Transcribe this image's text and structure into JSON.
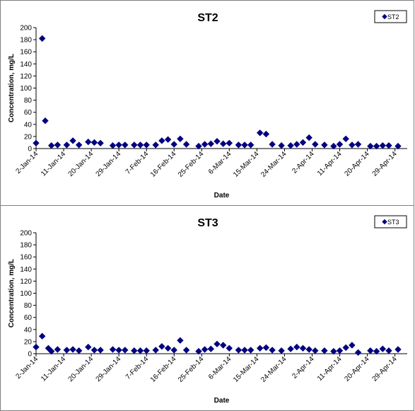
{
  "chart_data": [
    {
      "type": "scatter",
      "title": "ST2",
      "xlabel": "Date",
      "ylabel": "Concentration, mg/L",
      "ylim": [
        0,
        200
      ],
      "yticks": [
        "0",
        "20",
        "40",
        "60",
        "80",
        "100",
        "120",
        "140",
        "160",
        "180",
        "200"
      ],
      "xlim": [
        "2014-01-02",
        "2014-05-03"
      ],
      "xticks": [
        "2-Jan-14",
        "11-Jan-14",
        "20-Jan-14",
        "29-Jan-14",
        "7-Feb-14",
        "16-Feb-14",
        "25-Feb-14",
        "6-Mar-14",
        "15-Mar-14",
        "24-Mar-14",
        "2-Apr-14",
        "11-Apr-14",
        "20-Apr-14",
        "29-Apr-14"
      ],
      "grid": false,
      "legend": "top-right",
      "marker_color": "#000080",
      "series": [
        {
          "name": "ST2",
          "points": [
            [
              "2014-01-02",
              9
            ],
            [
              "2014-01-04",
              182
            ],
            [
              "2014-01-05",
              46
            ],
            [
              "2014-01-07",
              5
            ],
            [
              "2014-01-09",
              6
            ],
            [
              "2014-01-12",
              6
            ],
            [
              "2014-01-14",
              13
            ],
            [
              "2014-01-16",
              6
            ],
            [
              "2014-01-19",
              11
            ],
            [
              "2014-01-21",
              10
            ],
            [
              "2014-01-23",
              9
            ],
            [
              "2014-01-27",
              5
            ],
            [
              "2014-01-29",
              6
            ],
            [
              "2014-01-31",
              6
            ],
            [
              "2014-02-03",
              6
            ],
            [
              "2014-02-05",
              6
            ],
            [
              "2014-02-07",
              6
            ],
            [
              "2014-02-10",
              6
            ],
            [
              "2014-02-12",
              13
            ],
            [
              "2014-02-14",
              15
            ],
            [
              "2014-02-16",
              7
            ],
            [
              "2014-02-18",
              16
            ],
            [
              "2014-02-20",
              7
            ],
            [
              "2014-02-24",
              4
            ],
            [
              "2014-02-26",
              7
            ],
            [
              "2014-02-28",
              8
            ],
            [
              "2014-03-02",
              12
            ],
            [
              "2014-03-04",
              8
            ],
            [
              "2014-03-06",
              9
            ],
            [
              "2014-03-09",
              6
            ],
            [
              "2014-03-11",
              6
            ],
            [
              "2014-03-13",
              6
            ],
            [
              "2014-03-16",
              26
            ],
            [
              "2014-03-18",
              24
            ],
            [
              "2014-03-20",
              7
            ],
            [
              "2014-03-23",
              5
            ],
            [
              "2014-03-26",
              5
            ],
            [
              "2014-03-28",
              7
            ],
            [
              "2014-03-30",
              10
            ],
            [
              "2014-04-01",
              18
            ],
            [
              "2014-04-03",
              7
            ],
            [
              "2014-04-06",
              6
            ],
            [
              "2014-04-09",
              4
            ],
            [
              "2014-04-11",
              7
            ],
            [
              "2014-04-13",
              16
            ],
            [
              "2014-04-15",
              6
            ],
            [
              "2014-04-17",
              7
            ],
            [
              "2014-04-21",
              4
            ],
            [
              "2014-04-23",
              4
            ],
            [
              "2014-04-25",
              5
            ],
            [
              "2014-04-27",
              5
            ],
            [
              "2014-04-30",
              4
            ]
          ]
        }
      ]
    },
    {
      "type": "scatter",
      "title": "ST3",
      "xlabel": "Date",
      "ylabel": "Concentration, mg/L",
      "ylim": [
        0,
        200
      ],
      "yticks": [
        "0",
        "20",
        "40",
        "60",
        "80",
        "100",
        "120",
        "140",
        "160",
        "180",
        "200"
      ],
      "xlim": [
        "2014-01-02",
        "2014-05-03"
      ],
      "xticks": [
        "2-Jan-14",
        "11-Jan-14",
        "20-Jan-14",
        "29-Jan-14",
        "7-Feb-14",
        "16-Feb-14",
        "25-Feb-14",
        "6-Mar-14",
        "15-Mar-14",
        "24-Mar-14",
        "2-Apr-14",
        "11-Apr-14",
        "20-Apr-14",
        "29-Apr-14"
      ],
      "grid": false,
      "legend": "top-right",
      "marker_color": "#000080",
      "series": [
        {
          "name": "ST3",
          "points": [
            [
              "2014-01-02",
              11
            ],
            [
              "2014-01-04",
              29
            ],
            [
              "2014-01-06",
              9
            ],
            [
              "2014-01-07",
              4
            ],
            [
              "2014-01-09",
              7
            ],
            [
              "2014-01-12",
              6
            ],
            [
              "2014-01-14",
              7
            ],
            [
              "2014-01-16",
              5
            ],
            [
              "2014-01-19",
              11
            ],
            [
              "2014-01-21",
              6
            ],
            [
              "2014-01-23",
              6
            ],
            [
              "2014-01-27",
              7
            ],
            [
              "2014-01-29",
              6
            ],
            [
              "2014-01-31",
              6
            ],
            [
              "2014-02-03",
              5
            ],
            [
              "2014-02-05",
              5
            ],
            [
              "2014-02-07",
              5
            ],
            [
              "2014-02-10",
              6
            ],
            [
              "2014-02-12",
              12
            ],
            [
              "2014-02-14",
              9
            ],
            [
              "2014-02-16",
              6
            ],
            [
              "2014-02-18",
              22
            ],
            [
              "2014-02-20",
              6
            ],
            [
              "2014-02-24",
              4
            ],
            [
              "2014-02-26",
              7
            ],
            [
              "2014-02-28",
              8
            ],
            [
              "2014-03-02",
              16
            ],
            [
              "2014-03-04",
              14
            ],
            [
              "2014-03-06",
              9
            ],
            [
              "2014-03-09",
              6
            ],
            [
              "2014-03-11",
              6
            ],
            [
              "2014-03-13",
              6
            ],
            [
              "2014-03-16",
              9
            ],
            [
              "2014-03-18",
              10
            ],
            [
              "2014-03-20",
              6
            ],
            [
              "2014-03-23",
              5
            ],
            [
              "2014-03-26",
              8
            ],
            [
              "2014-03-28",
              11
            ],
            [
              "2014-03-30",
              9
            ],
            [
              "2014-04-01",
              7
            ],
            [
              "2014-04-03",
              5
            ],
            [
              "2014-04-06",
              5
            ],
            [
              "2014-04-09",
              4
            ],
            [
              "2014-04-11",
              5
            ],
            [
              "2014-04-13",
              10
            ],
            [
              "2014-04-15",
              14
            ],
            [
              "2014-04-17",
              2
            ],
            [
              "2014-04-21",
              5
            ],
            [
              "2014-04-23",
              4
            ],
            [
              "2014-04-25",
              8
            ],
            [
              "2014-04-27",
              5
            ],
            [
              "2014-04-30",
              7
            ]
          ]
        }
      ]
    }
  ]
}
